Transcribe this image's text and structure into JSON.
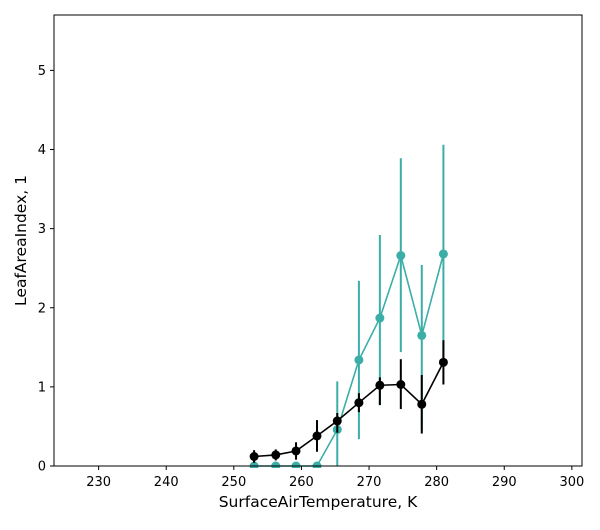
{
  "chart_data": {
    "type": "line",
    "title": "",
    "xlabel": "SurfaceAirTemperature,  K",
    "ylabel": "LeafAreaIndex,  1",
    "xlim": [
      223.4,
      301.5
    ],
    "ylim": [
      0,
      5.7
    ],
    "xticks": [
      230,
      240,
      250,
      260,
      270,
      280,
      290,
      300
    ],
    "yticks": [
      0,
      1,
      2,
      3,
      4,
      5
    ],
    "grid": false,
    "legend": null,
    "series": [
      {
        "color": "#000000",
        "x": [
          253.0,
          256.2,
          259.2,
          262.3,
          265.3,
          268.5,
          271.6,
          274.7,
          277.8,
          281.0
        ],
        "y": [
          0.12,
          0.14,
          0.19,
          0.38,
          0.57,
          0.8,
          1.02,
          1.03,
          0.78,
          1.31
        ],
        "err_low": [
          0.08,
          0.07,
          0.11,
          0.2,
          0.15,
          0.12,
          0.25,
          0.31,
          0.37,
          0.28
        ],
        "err_high": [
          0.08,
          0.07,
          0.11,
          0.2,
          0.1,
          0.12,
          0.1,
          0.32,
          0.37,
          0.28
        ]
      },
      {
        "color": "#3aaea7",
        "x": [
          253.0,
          256.2,
          259.2,
          262.3,
          265.3,
          268.5,
          271.6,
          274.7,
          277.8,
          281.0
        ],
        "y": [
          0.0,
          0.0,
          0.0,
          0.0,
          0.46,
          1.34,
          1.87,
          2.66,
          1.65,
          2.68
        ],
        "err_low": [
          0,
          0,
          0,
          0,
          0.46,
          1.0,
          1.1,
          1.22,
          1.2,
          1.38
        ],
        "err_high": [
          0,
          0,
          0,
          0,
          0.61,
          1.0,
          1.05,
          1.23,
          0.89,
          1.38
        ]
      }
    ]
  }
}
